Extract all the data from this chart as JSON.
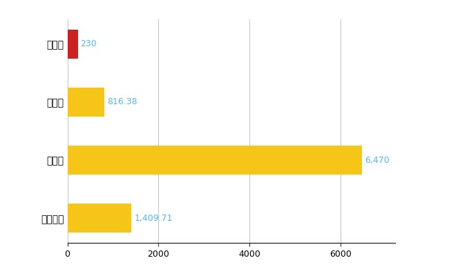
{
  "categories": [
    "大鰐町",
    "県平均",
    "県最大",
    "全国平均"
  ],
  "values": [
    230,
    816.38,
    6470,
    1409.71
  ],
  "colors": [
    "#CC2222",
    "#F5C518",
    "#F5C518",
    "#F5C518"
  ],
  "labels": [
    "230",
    "816.38",
    "6,470",
    "1,409.71"
  ],
  "xlim": [
    0,
    7200
  ],
  "xticks": [
    0,
    2000,
    4000,
    6000
  ],
  "background_color": "#ffffff",
  "grid_color": "#c8c8c8",
  "label_color": "#4db8ff",
  "bar_height": 0.5,
  "figsize": [
    6.5,
    4.0
  ],
  "dpi": 100
}
